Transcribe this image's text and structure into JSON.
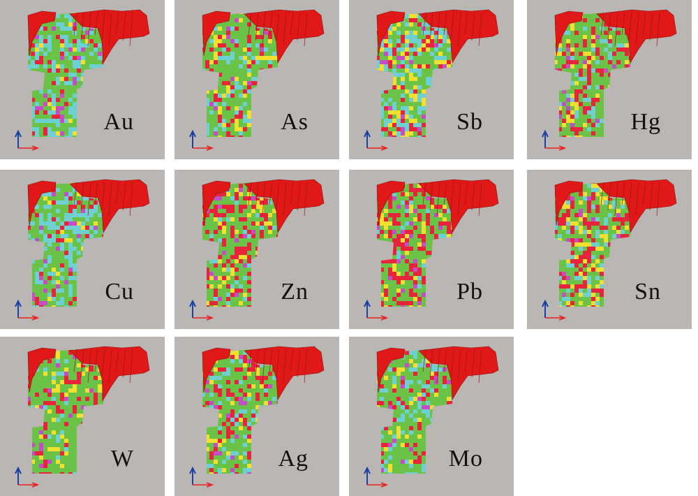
{
  "panels": [
    {
      "label": "Au",
      "palette": [
        "#6ac347",
        "#6ed0d0",
        "#e8243c",
        "#f2e030",
        "#c44fc4"
      ],
      "weights": [
        0.45,
        0.35,
        0.1,
        0.05,
        0.05
      ]
    },
    {
      "label": "As",
      "palette": [
        "#6ac347",
        "#6ed0d0",
        "#e8243c",
        "#f2e030",
        "#c44fc4"
      ],
      "weights": [
        0.55,
        0.15,
        0.15,
        0.1,
        0.05
      ]
    },
    {
      "label": "Sb",
      "palette": [
        "#6ac347",
        "#6ed0d0",
        "#e8243c",
        "#f2e030",
        "#c44fc4"
      ],
      "weights": [
        0.35,
        0.3,
        0.15,
        0.15,
        0.05
      ]
    },
    {
      "label": "Hg",
      "palette": [
        "#6ac347",
        "#6ed0d0",
        "#e8243c",
        "#f2e030",
        "#c44fc4"
      ],
      "weights": [
        0.55,
        0.1,
        0.2,
        0.1,
        0.05
      ]
    },
    {
      "label": "Cu",
      "palette": [
        "#6ac347",
        "#6ed0d0",
        "#e8243c",
        "#f2e030",
        "#c44fc4"
      ],
      "weights": [
        0.45,
        0.35,
        0.1,
        0.05,
        0.05
      ]
    },
    {
      "label": "Zn",
      "palette": [
        "#6ac347",
        "#6ed0d0",
        "#e8243c",
        "#f2e030",
        "#c44fc4"
      ],
      "weights": [
        0.5,
        0.05,
        0.25,
        0.15,
        0.05
      ]
    },
    {
      "label": "Pb",
      "palette": [
        "#6ac347",
        "#6ed0d0",
        "#e8243c",
        "#f2e030",
        "#c44fc4"
      ],
      "weights": [
        0.5,
        0.05,
        0.3,
        0.1,
        0.05
      ]
    },
    {
      "label": "Sn",
      "palette": [
        "#6ac347",
        "#6ed0d0",
        "#e8243c",
        "#f2e030",
        "#c44fc4"
      ],
      "weights": [
        0.45,
        0.1,
        0.25,
        0.15,
        0.05
      ]
    },
    {
      "label": "W",
      "palette": [
        "#6ac347",
        "#6ed0d0",
        "#e8243c",
        "#f2e030",
        "#c44fc4"
      ],
      "weights": [
        0.65,
        0.05,
        0.15,
        0.1,
        0.05
      ]
    },
    {
      "label": "Ag",
      "palette": [
        "#6ac347",
        "#6ed0d0",
        "#e8243c",
        "#f2e030",
        "#c44fc4"
      ],
      "weights": [
        0.55,
        0.1,
        0.2,
        0.1,
        0.05
      ]
    },
    {
      "label": "Mo",
      "palette": [
        "#6ac347",
        "#6ed0d0",
        "#e8243c",
        "#f2e030",
        "#c44fc4"
      ],
      "weights": [
        0.6,
        0.15,
        0.1,
        0.1,
        0.05
      ]
    }
  ],
  "colors": {
    "background": "#b9b6b3",
    "cliff": "#e01818",
    "axis_up": "#1c3fa8",
    "axis_right": "#e82020"
  }
}
